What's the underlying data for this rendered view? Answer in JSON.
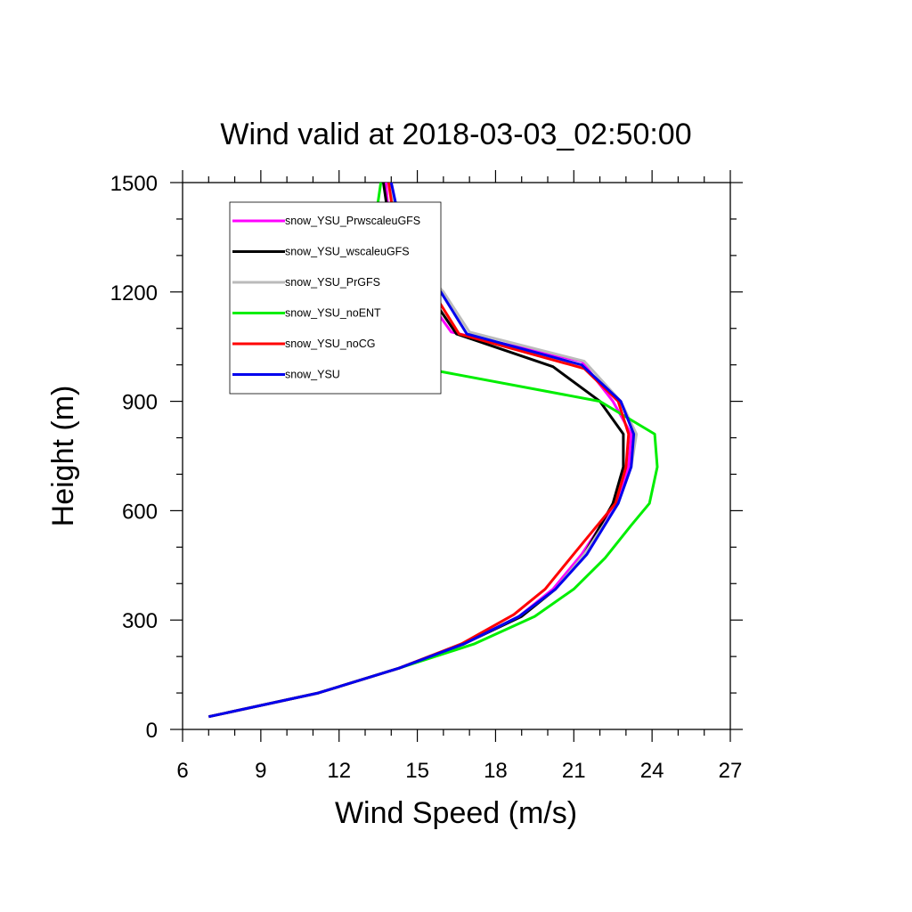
{
  "chart_data": {
    "type": "line",
    "title": "Wind valid at 2018-03-03_02:50:00",
    "xlabel": "Wind Speed (m/s)",
    "ylabel": "Height (m)",
    "xlim": [
      6,
      27
    ],
    "ylim": [
      0,
      1500
    ],
    "xticks": [
      6,
      9,
      12,
      15,
      18,
      21,
      24,
      27
    ],
    "yticks": [
      0,
      300,
      600,
      900,
      1200,
      1500
    ],
    "grid": false,
    "legend_position": "top-left",
    "series": [
      {
        "name": "snow_YSU_PrwscaleuGFS",
        "color": "#ff00ff",
        "points": [
          [
            7.0,
            35
          ],
          [
            11.2,
            100
          ],
          [
            14.3,
            168
          ],
          [
            16.8,
            235
          ],
          [
            18.9,
            310
          ],
          [
            20.2,
            385
          ],
          [
            21.3,
            480
          ],
          [
            22.6,
            620
          ],
          [
            23.1,
            720
          ],
          [
            23.2,
            810
          ],
          [
            22.5,
            900
          ],
          [
            21.3,
            1010
          ],
          [
            16.3,
            1090
          ],
          [
            15.2,
            1200
          ],
          [
            14.3,
            1300
          ],
          [
            13.9,
            1400
          ],
          [
            13.8,
            1500
          ]
        ]
      },
      {
        "name": "snow_YSU_wscaleuGFS",
        "color": "#000000",
        "points": [
          [
            7.0,
            35
          ],
          [
            11.2,
            100
          ],
          [
            14.3,
            168
          ],
          [
            16.8,
            235
          ],
          [
            19.0,
            310
          ],
          [
            20.3,
            385
          ],
          [
            21.4,
            480
          ],
          [
            22.5,
            620
          ],
          [
            22.9,
            720
          ],
          [
            22.9,
            810
          ],
          [
            22.0,
            900
          ],
          [
            20.2,
            995
          ],
          [
            16.5,
            1085
          ],
          [
            15.4,
            1200
          ],
          [
            14.4,
            1300
          ],
          [
            13.9,
            1400
          ],
          [
            13.7,
            1500
          ]
        ]
      },
      {
        "name": "snow_YSU_PrGFS",
        "color": "#bbbbbb",
        "points": [
          [
            7.0,
            35
          ],
          [
            11.2,
            100
          ],
          [
            14.3,
            168
          ],
          [
            16.8,
            235
          ],
          [
            18.9,
            310
          ],
          [
            20.3,
            385
          ],
          [
            21.4,
            480
          ],
          [
            22.7,
            620
          ],
          [
            23.2,
            720
          ],
          [
            23.4,
            810
          ],
          [
            22.8,
            900
          ],
          [
            21.4,
            1010
          ],
          [
            17.0,
            1090
          ],
          [
            16.0,
            1200
          ],
          [
            14.7,
            1300
          ],
          [
            14.2,
            1400
          ],
          [
            14.0,
            1500
          ]
        ]
      },
      {
        "name": "snow_YSU_noENT",
        "color": "#00ee00",
        "points": [
          [
            7.0,
            35
          ],
          [
            11.2,
            100
          ],
          [
            14.3,
            168
          ],
          [
            17.2,
            235
          ],
          [
            19.5,
            310
          ],
          [
            21.0,
            385
          ],
          [
            22.2,
            470
          ],
          [
            23.2,
            560
          ],
          [
            23.9,
            620
          ],
          [
            24.2,
            720
          ],
          [
            24.1,
            810
          ],
          [
            22.0,
            900
          ],
          [
            14.9,
            995
          ],
          [
            13.8,
            1100
          ],
          [
            13.0,
            1200
          ],
          [
            13.1,
            1300
          ],
          [
            13.4,
            1400
          ],
          [
            13.6,
            1500
          ]
        ]
      },
      {
        "name": "snow_YSU_noCG",
        "color": "#ff0000",
        "points": [
          [
            7.0,
            35
          ],
          [
            11.2,
            100
          ],
          [
            14.3,
            168
          ],
          [
            16.7,
            235
          ],
          [
            18.7,
            315
          ],
          [
            19.9,
            385
          ],
          [
            21.1,
            490
          ],
          [
            22.6,
            620
          ],
          [
            23.0,
            720
          ],
          [
            23.1,
            810
          ],
          [
            22.7,
            900
          ],
          [
            21.4,
            990
          ],
          [
            16.6,
            1085
          ],
          [
            15.6,
            1200
          ],
          [
            14.6,
            1300
          ],
          [
            14.1,
            1400
          ],
          [
            13.9,
            1500
          ]
        ]
      },
      {
        "name": "snow_YSU",
        "color": "#0000ee",
        "points": [
          [
            7.0,
            35
          ],
          [
            11.2,
            100
          ],
          [
            14.3,
            168
          ],
          [
            16.8,
            235
          ],
          [
            18.9,
            310
          ],
          [
            20.3,
            385
          ],
          [
            21.5,
            480
          ],
          [
            22.7,
            620
          ],
          [
            23.2,
            720
          ],
          [
            23.3,
            810
          ],
          [
            22.8,
            900
          ],
          [
            21.3,
            1000
          ],
          [
            16.9,
            1085
          ],
          [
            15.9,
            1200
          ],
          [
            14.7,
            1300
          ],
          [
            14.3,
            1400
          ],
          [
            14.0,
            1500
          ]
        ]
      }
    ]
  }
}
